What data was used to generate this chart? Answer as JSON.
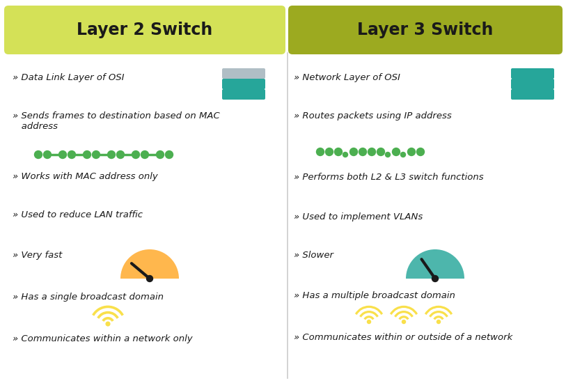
{
  "bg_color": "#ffffff",
  "left_header_color": "#d4e157",
  "right_header_color": "#9caa20",
  "header_text_color": "#1a1a1a",
  "body_text_color": "#1a1a1a",
  "left_title": "Layer 2 Switch",
  "right_title": "Layer 3 Switch",
  "left_items": [
    "» Data Link Layer of OSI",
    "» Sends frames to destination based on MAC\n   address",
    "» Works with MAC address only",
    "» Used to reduce LAN traffic",
    "» Very fast",
    "» Has a single broadcast domain",
    "» Communicates within a network only"
  ],
  "right_items": [
    "» Network Layer of OSI",
    "» Routes packets using IP address",
    "» Performs both L2 & L3 switch functions",
    "» Used to implement VLANs",
    "» Slower",
    "» Has a multiple broadcast domain",
    "» Communicates within or outside of a network"
  ],
  "mac_dots_color": "#4caf50",
  "ip_dots_color": "#4caf50",
  "speedometer_fast_color": "#ffb74d",
  "speedometer_slow_color": "#4db6ac",
  "needle_color": "#1a1a1a",
  "wifi_color": "#f9e04b",
  "switch_icon_gray": "#b0bec5",
  "switch_icon_teal": "#26a69a",
  "divider_color": "#cccccc"
}
